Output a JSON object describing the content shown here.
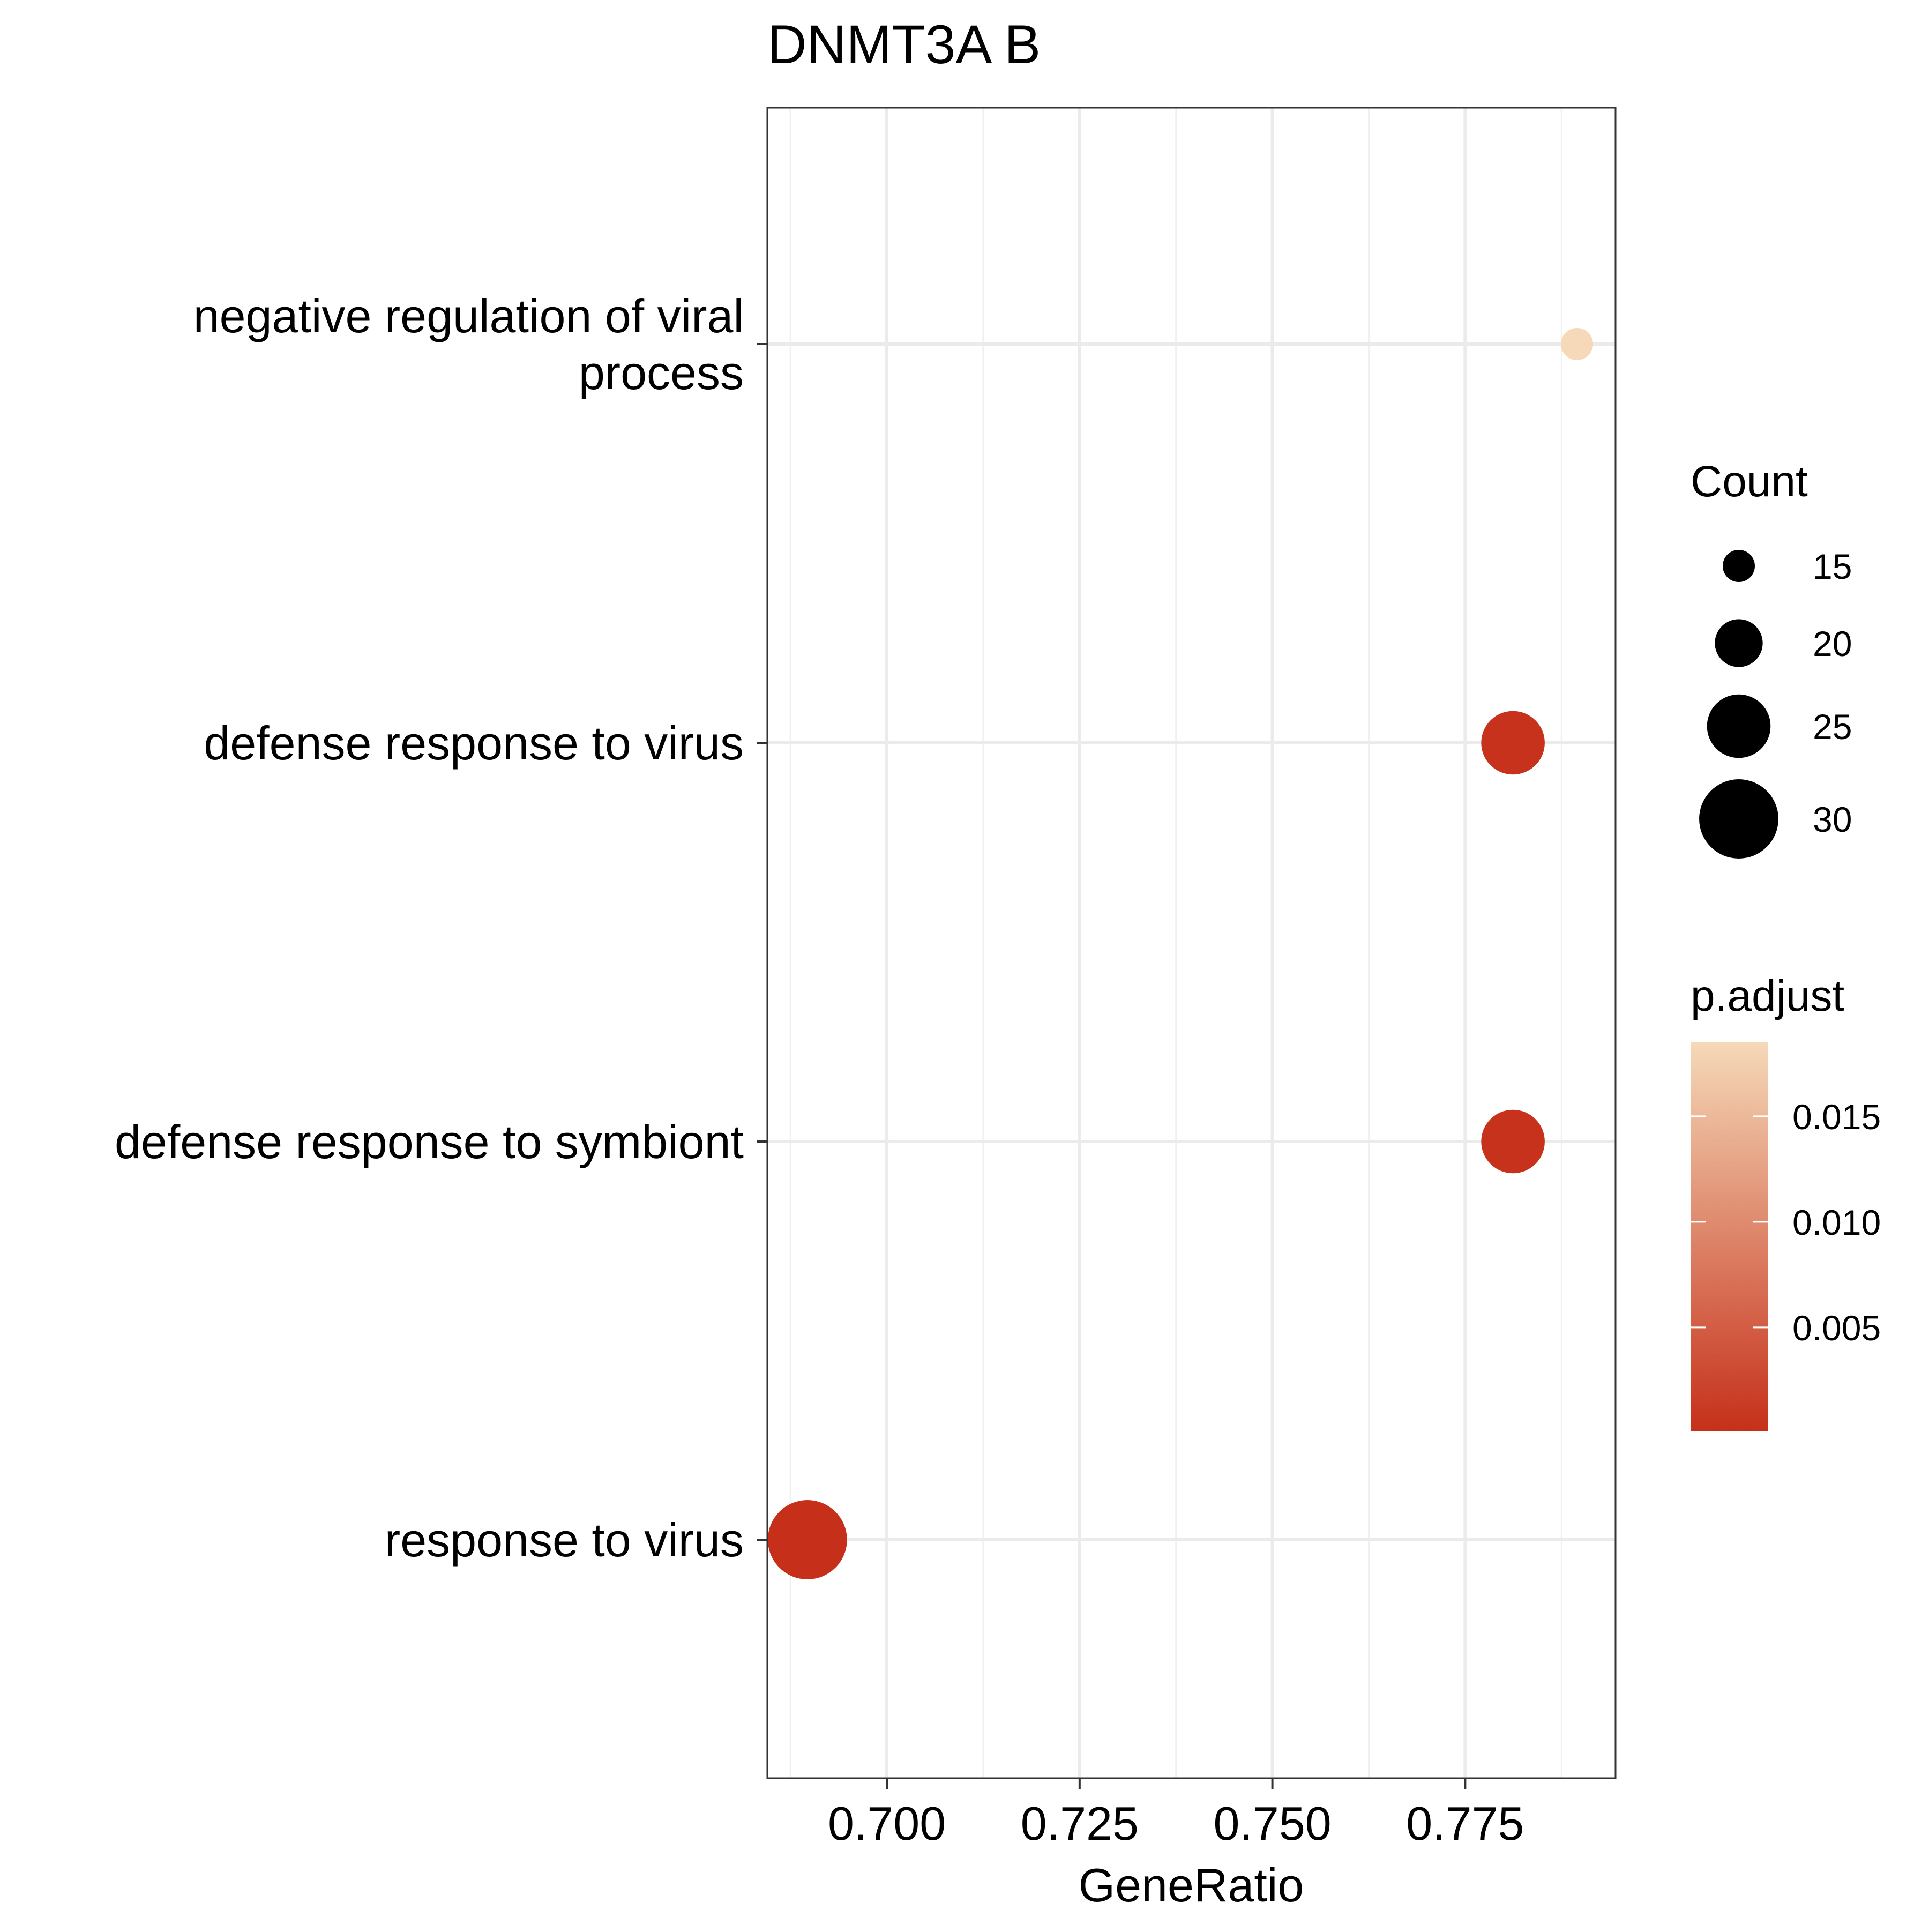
{
  "chart_data": {
    "type": "scatter",
    "title": "DNMT3A B",
    "xlabel": "GeneRatio",
    "ylabel": "",
    "xlim": [
      0.6845,
      0.7945
    ],
    "x_ticks": [
      0.7,
      0.725,
      0.75,
      0.775
    ],
    "x_tick_labels": [
      "0.700",
      "0.725",
      "0.750",
      "0.775"
    ],
    "grid": true,
    "categories": [
      "negative regulation of viral process",
      "defense response to virus",
      "defense response to symbiont",
      "response to virus"
    ],
    "category_label_lines": [
      [
        "negative regulation of viral",
        "process"
      ],
      [
        "defense response to virus"
      ],
      [
        "defense response to symbiont"
      ],
      [
        "response to virus"
      ]
    ],
    "points": [
      {
        "term": "negative regulation of viral process",
        "gene_ratio": 0.7895,
        "count": 15,
        "p_adjust": 0.0185
      },
      {
        "term": "defense response to virus",
        "gene_ratio": 0.7812,
        "count": 25,
        "p_adjust": 0.0003
      },
      {
        "term": "defense response to symbiont",
        "gene_ratio": 0.7812,
        "count": 25,
        "p_adjust": 0.0003
      },
      {
        "term": "response to virus",
        "gene_ratio": 0.6897,
        "count": 30,
        "p_adjust": 0.0001
      }
    ],
    "size_legend": {
      "title": "Count",
      "values": [
        15,
        20,
        25,
        30
      ],
      "labels": [
        "15",
        "20",
        "25",
        "30"
      ]
    },
    "color_legend": {
      "title": "p.adjust",
      "range": [
        0.0001,
        0.0185
      ],
      "ticks": [
        0.015,
        0.01,
        0.005
      ],
      "tick_labels": [
        "0.015",
        "0.010",
        "0.005"
      ],
      "color_low": "#C6301A",
      "color_high": "#F5D9B8"
    },
    "legend_position": "right"
  }
}
